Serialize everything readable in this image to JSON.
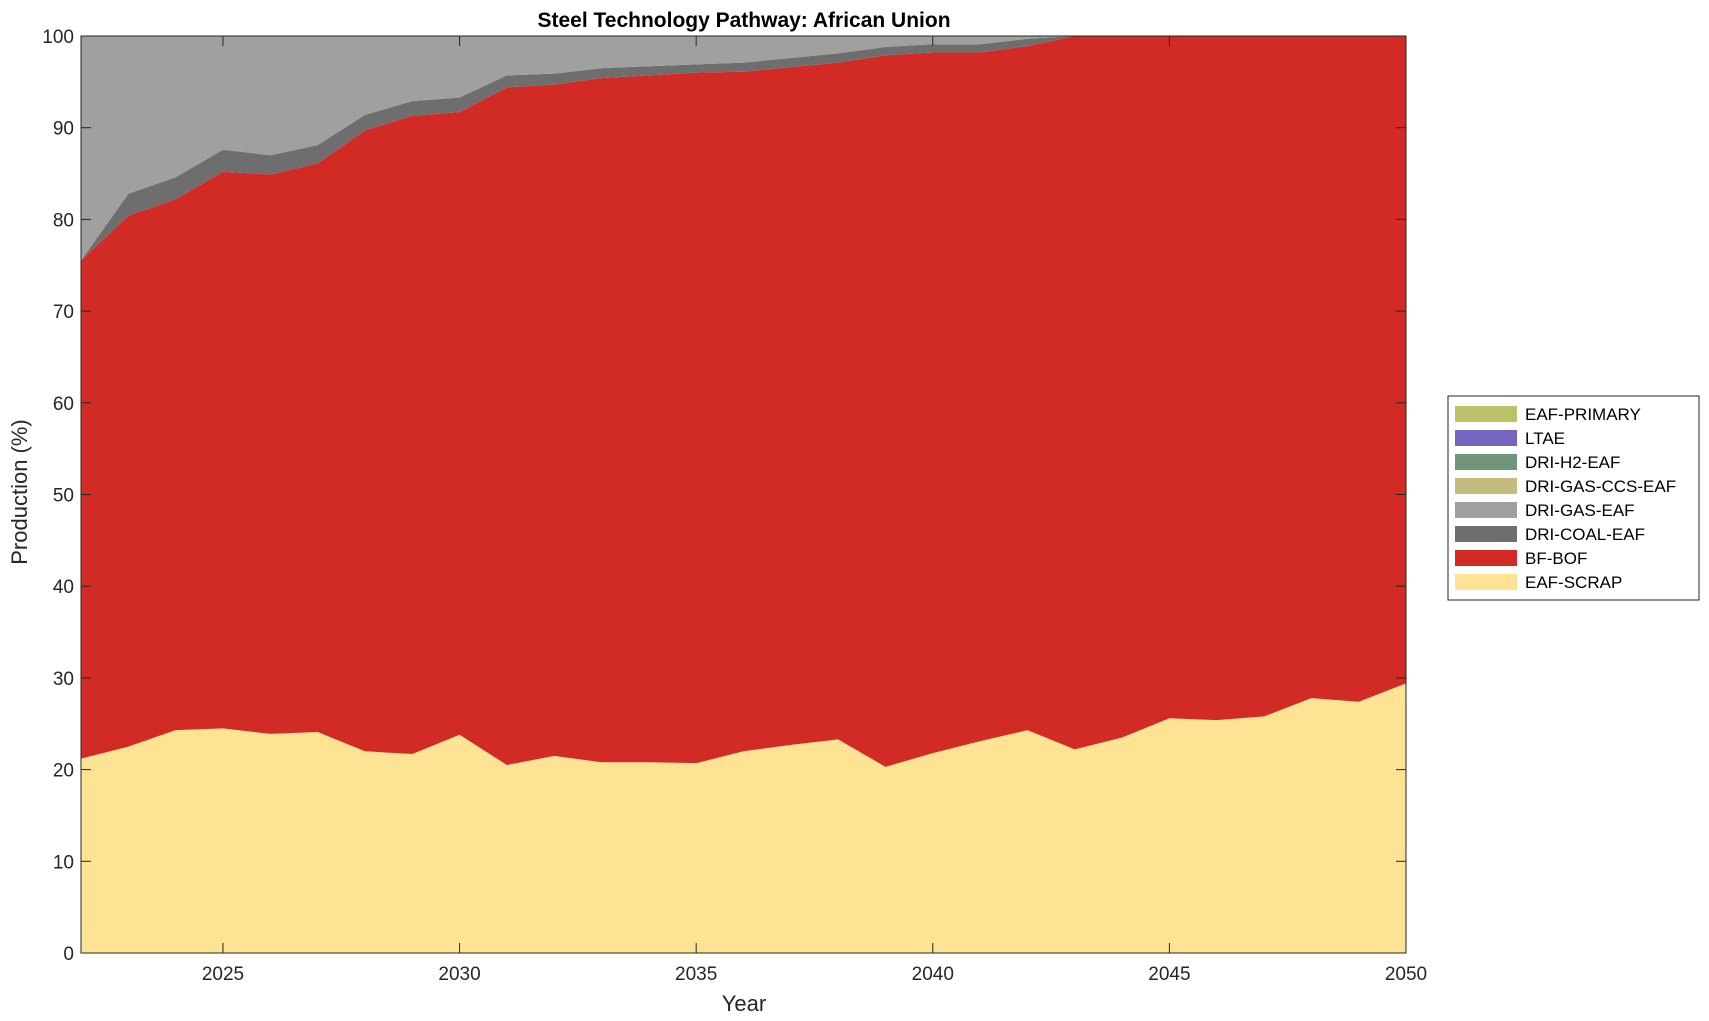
{
  "chart_data": {
    "type": "area",
    "stacked": true,
    "title": "Steel Technology Pathway: African Union",
    "xlabel": "Year",
    "ylabel": "Production (%)",
    "xlim": [
      2022,
      2050
    ],
    "ylim": [
      0,
      100
    ],
    "xticks": [
      2025,
      2030,
      2035,
      2040,
      2045,
      2050
    ],
    "yticks": [
      0,
      10,
      20,
      30,
      40,
      50,
      60,
      70,
      80,
      90,
      100
    ],
    "grid": false,
    "legend_position": "east-outside",
    "x": [
      2022,
      2023,
      2024,
      2025,
      2026,
      2027,
      2028,
      2029,
      2030,
      2031,
      2032,
      2033,
      2034,
      2035,
      2036,
      2037,
      2038,
      2039,
      2040,
      2041,
      2042,
      2043,
      2044,
      2045,
      2046,
      2047,
      2048,
      2049,
      2050
    ],
    "series": [
      {
        "name": "EAF-SCRAP",
        "color": "#FEE394",
        "values": [
          21.2,
          22.5,
          24.3,
          24.5,
          23.9,
          24.1,
          22.0,
          21.7,
          23.8,
          20.5,
          21.5,
          20.8,
          20.8,
          20.7,
          22.0,
          22.7,
          23.3,
          20.3,
          21.8,
          23.1,
          24.3,
          22.2,
          23.5,
          25.6,
          25.4,
          25.8,
          27.8,
          27.4,
          29.4
        ]
      },
      {
        "name": "BF-BOF",
        "color": "#D22A24",
        "values": [
          54.3,
          57.9,
          57.9,
          60.7,
          61.0,
          62.0,
          67.7,
          69.6,
          67.9,
          73.9,
          73.2,
          74.6,
          74.9,
          75.3,
          74.1,
          73.9,
          73.8,
          77.6,
          76.4,
          75.1,
          74.6,
          77.8,
          76.5,
          74.4,
          74.6,
          74.2,
          72.2,
          72.6,
          70.6
        ]
      },
      {
        "name": "DRI-COAL-EAF",
        "color": "#6E6E6E",
        "values": [
          0.0,
          2.4,
          2.4,
          2.4,
          2.1,
          2.0,
          1.7,
          1.6,
          1.6,
          1.3,
          1.2,
          1.1,
          1.0,
          0.9,
          1.0,
          1.0,
          1.0,
          0.9,
          0.9,
          0.9,
          0.8,
          0.0,
          0.0,
          0.0,
          0.0,
          0.0,
          0.0,
          0.0,
          0.0
        ]
      },
      {
        "name": "DRI-GAS-EAF",
        "color": "#A0A09E",
        "values": [
          24.5,
          17.2,
          15.4,
          12.4,
          13.0,
          11.9,
          8.6,
          7.1,
          6.7,
          4.3,
          4.1,
          3.5,
          3.3,
          3.1,
          2.9,
          2.4,
          1.9,
          1.2,
          0.9,
          0.9,
          0.3,
          0.0,
          0.0,
          0.0,
          0.0,
          0.0,
          0.0,
          0.0,
          0.0
        ]
      },
      {
        "name": "DRI-GAS-CCS-EAF",
        "color": "#C4BC7E",
        "values": [
          0,
          0,
          0,
          0,
          0,
          0,
          0,
          0,
          0,
          0,
          0,
          0,
          0,
          0,
          0,
          0,
          0,
          0,
          0,
          0,
          0,
          0,
          0,
          0,
          0,
          0,
          0,
          0,
          0
        ]
      },
      {
        "name": "DRI-H2-EAF",
        "color": "#6F967A",
        "values": [
          0,
          0,
          0,
          0,
          0,
          0,
          0,
          0,
          0,
          0,
          0,
          0,
          0,
          0,
          0,
          0,
          0,
          0,
          0,
          0,
          0,
          0,
          0,
          0,
          0,
          0,
          0,
          0,
          0
        ]
      },
      {
        "name": "LTAE",
        "color": "#7565BE",
        "values": [
          0,
          0,
          0,
          0,
          0,
          0,
          0,
          0,
          0,
          0,
          0,
          0,
          0,
          0,
          0,
          0,
          0,
          0,
          0,
          0,
          0,
          0,
          0,
          0,
          0,
          0,
          0,
          0,
          0
        ]
      },
      {
        "name": "EAF-PRIMARY",
        "color": "#BCC26A",
        "values": [
          0,
          0,
          0,
          0,
          0,
          0,
          0,
          0,
          0,
          0,
          0,
          0,
          0,
          0,
          0,
          0,
          0,
          0,
          0,
          0,
          0,
          0,
          0,
          0,
          0,
          0,
          0,
          0,
          0
        ]
      }
    ],
    "legend_order": [
      "EAF-PRIMARY",
      "LTAE",
      "DRI-H2-EAF",
      "DRI-GAS-CCS-EAF",
      "DRI-GAS-EAF",
      "DRI-COAL-EAF",
      "BF-BOF",
      "EAF-SCRAP"
    ]
  }
}
